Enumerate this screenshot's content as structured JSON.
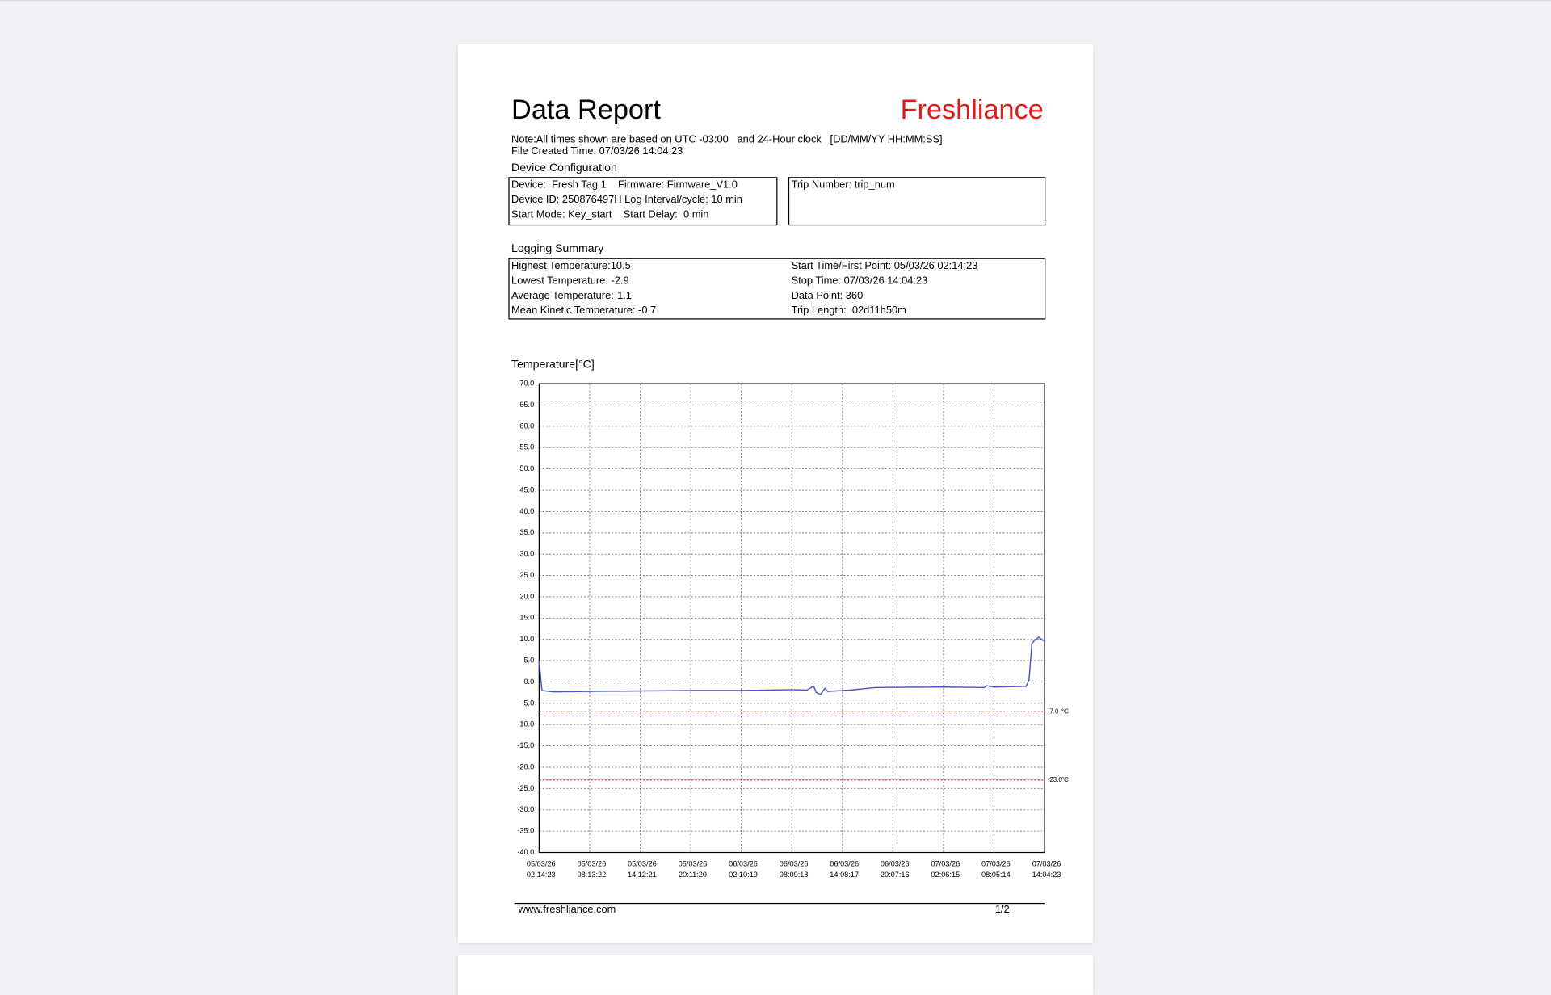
{
  "header": {
    "title": "Data Report",
    "brand": "Freshliance",
    "note": "Note:All times shown are based on UTC -03:00   and 24-Hour clock   [DD/MM/YY HH:MM:SS]",
    "file_created": "File Created Time: 07/03/26 14:04:23"
  },
  "device_configuration": {
    "heading": "Device Configuration",
    "lines": [
      "Device:  Fresh Tag 1    Firmware: Firmware_V1.0",
      "Device ID: 250876497H Log Interval/cycle: 10 min",
      "Start Mode: Key_start    Start Delay:  0 min"
    ],
    "trip": "Trip Number: trip_num"
  },
  "logging_summary": {
    "heading": "Logging Summary",
    "left": [
      "Highest Temperature:10.5",
      "Lowest Temperature: -2.9",
      "Average Temperature:-1.1",
      "Mean Kinetic Temperature: -0.7"
    ],
    "right": [
      "Start Time/First Point: 05/03/26 02:14:23",
      "Stop Time: 07/03/26 14:04:23",
      "Data Point: 360",
      "Trip Length:  02d11h50m"
    ]
  },
  "chart_data": {
    "type": "line",
    "ylabel": "Temperature[°C]",
    "x": [
      "05/03/26 02:14:23",
      "05/03/26 02:34:23",
      "05/03/26 03:54:23",
      "05/03/26 08:44:23",
      "05/03/26 14:34:23",
      "05/03/26 20:24:23",
      "06/03/26 02:14:23",
      "06/03/26 08:04:23",
      "06/03/26 09:54:23",
      "06/03/26 10:44:23",
      "06/03/26 11:04:23",
      "06/03/26 11:34:23",
      "06/03/26 12:04:23",
      "06/03/26 12:24:23",
      "06/03/26 15:04:23",
      "06/03/26 18:04:23",
      "07/03/26 01:44:23",
      "07/03/26 06:54:23",
      "07/03/26 07:14:23",
      "07/03/26 08:04:23",
      "07/03/26 11:54:23",
      "07/03/26 12:14:23",
      "07/03/26 12:34:23",
      "07/03/26 12:54:23",
      "07/03/26 13:24:23",
      "07/03/26 14:04:23"
    ],
    "series": [
      {
        "name": "Temperature",
        "color": "#4b55c6",
        "values": [
          5.0,
          -2.0,
          -2.3,
          -2.2,
          -2.1,
          -2.0,
          -2.0,
          -1.8,
          -1.9,
          -1.0,
          -2.5,
          -2.9,
          -1.5,
          -2.2,
          -1.9,
          -1.3,
          -1.2,
          -1.3,
          -0.9,
          -1.2,
          -1.0,
          0.5,
          9.0,
          9.8,
          10.5,
          9.5
        ]
      }
    ],
    "xlim": [
      "05/03/26 02:14:23",
      "07/03/26 14:04:23"
    ],
    "xticks": [
      "05/03/26\n02:14:23",
      "05/03/26\n08:13:22",
      "05/03/26\n14:12:21",
      "05/03/26\n20:11:20",
      "06/03/26\n02:10:19",
      "06/03/26\n08:09:18",
      "06/03/26\n14:08:17",
      "06/03/26\n20:07:16",
      "07/03/26\n02:06:15",
      "07/03/26\n08:05:14",
      "07/03/26\n14:04:23"
    ],
    "ylim": [
      -40,
      70
    ],
    "yticks": [
      {
        "value": 70,
        "label": "70.0"
      },
      {
        "value": 65,
        "label": "65.0"
      },
      {
        "value": 60,
        "label": "60.0"
      },
      {
        "value": 55,
        "label": "55.0"
      },
      {
        "value": 50,
        "label": "50.0"
      },
      {
        "value": 45,
        "label": "45.0"
      },
      {
        "value": 40,
        "label": "40.0"
      },
      {
        "value": 35,
        "label": "35.0"
      },
      {
        "value": 30,
        "label": "30.0"
      },
      {
        "value": 25,
        "label": "25.0"
      },
      {
        "value": 20,
        "label": "20.0"
      },
      {
        "value": 15,
        "label": "15.0"
      },
      {
        "value": 10,
        "label": "10.0"
      },
      {
        "value": 5,
        "label": "5.0"
      },
      {
        "value": 0,
        "label": "0.0"
      },
      {
        "value": -5,
        "label": "-5.0"
      },
      {
        "value": -10,
        "label": "-10.0"
      },
      {
        "value": -15,
        "label": "-15.0"
      },
      {
        "value": -20,
        "label": "-20.0"
      },
      {
        "value": -25,
        "label": "-25.0"
      },
      {
        "value": -30,
        "label": "-30.0"
      },
      {
        "value": -35,
        "label": "-35.0"
      },
      {
        "value": -40,
        "label": "-40.0"
      }
    ],
    "thresholds": [
      {
        "value": -7,
        "label": "-7.0",
        "unit": "°C",
        "color": "#e02020"
      },
      {
        "value": -23,
        "label": "-23.0",
        "unit": "°C",
        "color": "#e02020"
      }
    ],
    "grid": true
  },
  "footer": {
    "url": "www.freshliance.com",
    "page": "1/2"
  }
}
